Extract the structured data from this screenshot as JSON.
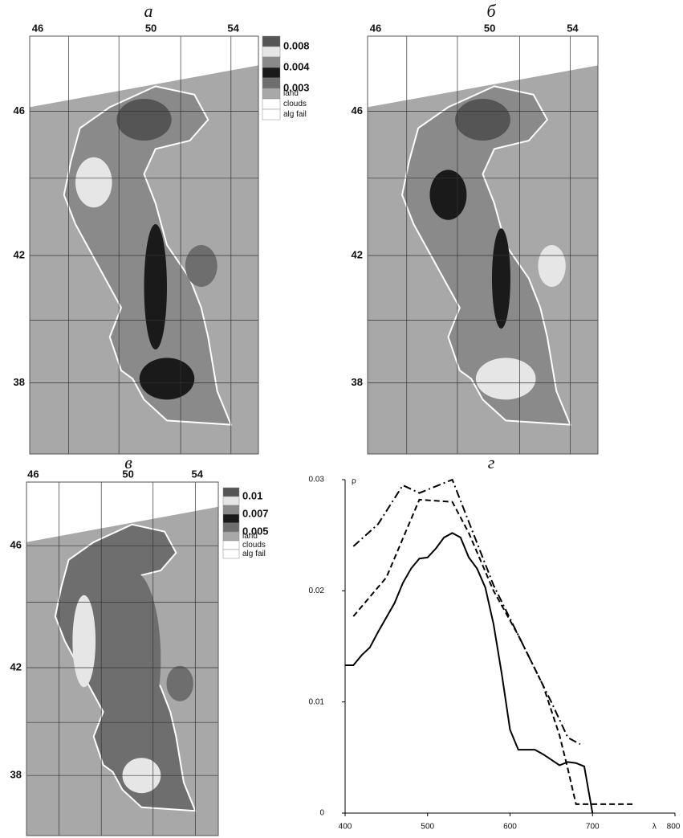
{
  "maps": [
    {
      "label": "а",
      "lon_ticks": [
        46,
        50,
        54
      ],
      "lat_ticks": [
        46,
        42,
        38
      ],
      "legend": {
        "swatches": [
          "#555555",
          "#e6e6e6",
          "#8a8a8a",
          "#1a1a1a",
          "#6e6e6e",
          "#a8a8a8",
          "#ffffff",
          "#ffffff"
        ],
        "labels": [
          "0.008",
          "0.004",
          "0.003",
          "land",
          "clouds",
          "alg fail"
        ]
      }
    },
    {
      "label": "б",
      "lon_ticks": [
        46,
        50,
        54
      ],
      "lat_ticks": [
        46,
        42,
        38
      ]
    },
    {
      "label": "в",
      "lon_ticks": [
        46,
        50,
        54
      ],
      "lat_ticks": [
        46,
        42,
        38
      ],
      "legend": {
        "swatches": [
          "#555555",
          "#e6e6e6",
          "#8a8a8a",
          "#1a1a1a",
          "#6e6e6e",
          "#a8a8a8",
          "#ffffff",
          "#ffffff"
        ],
        "labels": [
          "0.01",
          "0.007",
          "0.005",
          "land",
          "clouds",
          "alg fail"
        ]
      }
    }
  ],
  "chart_data": {
    "type": "line",
    "title": "г",
    "ylabel": "ρ",
    "xlabel": "λ",
    "xlim": [
      400,
      800
    ],
    "ylim": [
      0,
      0.03
    ],
    "xticks": [
      400,
      500,
      600,
      700,
      800
    ],
    "yticks": [
      0,
      0.01,
      0.02,
      0.03
    ],
    "series": [
      {
        "color": "#000000",
        "dash": "solid",
        "x": [
          400,
          410,
          420,
          430,
          440,
          450,
          460,
          470,
          480,
          490,
          500,
          510,
          520,
          530,
          540,
          550,
          560,
          570,
          580,
          590,
          600,
          610,
          620,
          630,
          640,
          650,
          660,
          670,
          680,
          690,
          700
        ],
        "values": [
          0.0133,
          0.0133,
          0.0142,
          0.0149,
          0.0163,
          0.0176,
          0.0189,
          0.0207,
          0.022,
          0.0229,
          0.023,
          0.0238,
          0.0248,
          0.0252,
          0.0248,
          0.023,
          0.022,
          0.0203,
          0.017,
          0.0125,
          0.0075,
          0.0057,
          0.0057,
          0.0057,
          0.0053,
          0.0048,
          0.0043,
          0.0046,
          0.0045,
          0.0042,
          0
        ]
      },
      {
        "color": "#000000",
        "dash": "dashed",
        "x": [
          410,
          450,
          490,
          510,
          530,
          550,
          580,
          610,
          640,
          660,
          670,
          680,
          700,
          750
        ],
        "values": [
          0.0177,
          0.0212,
          0.0282,
          0.0281,
          0.028,
          0.0252,
          0.02,
          0.016,
          0.0115,
          0.007,
          0.004,
          0.0008,
          0.0008,
          0.0008
        ]
      },
      {
        "color": "#000000",
        "dash": "dashdot",
        "x": [
          410,
          440,
          470,
          490,
          530,
          550,
          580,
          620,
          650,
          670,
          685
        ],
        "values": [
          0.024,
          0.026,
          0.0295,
          0.0288,
          0.03,
          0.0262,
          0.0205,
          0.0145,
          0.01,
          0.0068,
          0.0062
        ]
      }
    ]
  }
}
